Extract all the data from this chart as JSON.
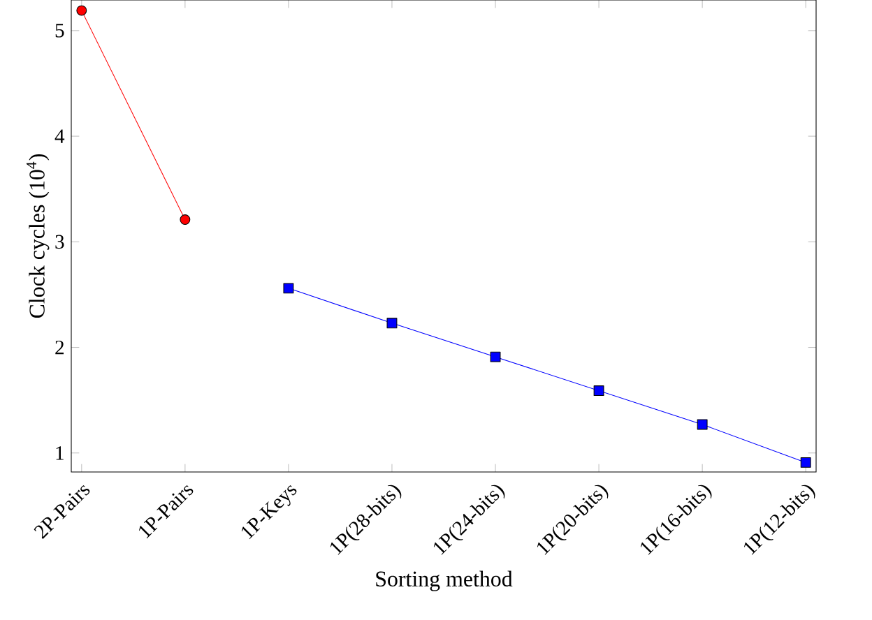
{
  "chart_data": {
    "type": "line",
    "xlabel": "Sorting method",
    "ylabel": "Clock cycles (10$^{4}$)",
    "categories": [
      "2P-Pairs",
      "1P-Pairs",
      "1P-Keys",
      "1P(28-bits)",
      "1P(24-bits)",
      "1P(20-bits)",
      "1P(16-bits)",
      "1P(12-bits)"
    ],
    "series": [
      {
        "color": "#ff0000",
        "marker": "circle",
        "values": [
          5.19,
          3.21,
          null,
          null,
          null,
          null,
          null,
          null
        ]
      },
      {
        "color": "#0000ff",
        "marker": "square",
        "values": [
          null,
          null,
          2.56,
          2.23,
          1.91,
          1.59,
          1.27,
          0.91
        ]
      }
    ],
    "ylim": [
      0.82,
      5.29
    ],
    "yticks": [
      1,
      2,
      3,
      4,
      5
    ],
    "grid": false
  }
}
